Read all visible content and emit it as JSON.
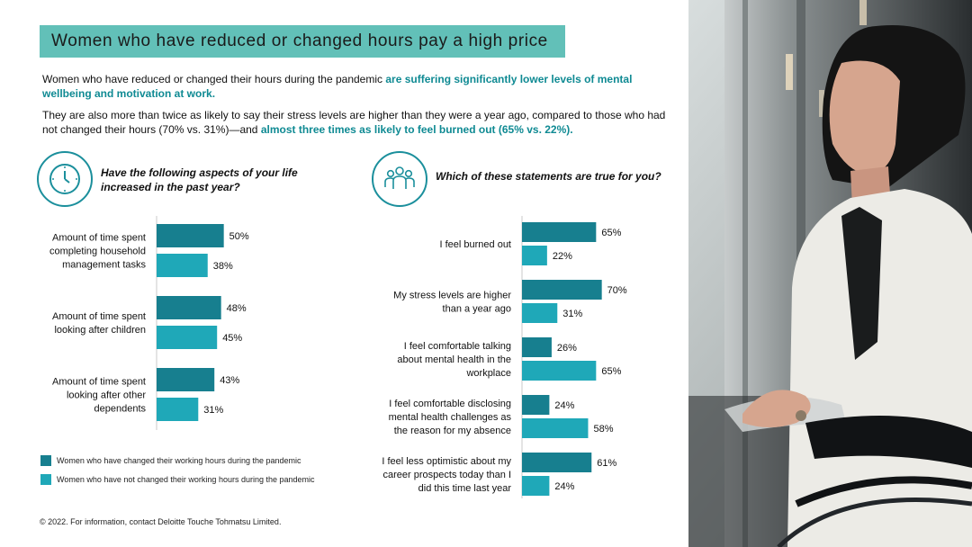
{
  "title": "Women who have reduced or changed hours pay a high price",
  "intro": {
    "p1_plain": "Women who have reduced or changed their hours during the pandemic ",
    "p1_highlight": "are suffering significantly lower levels of mental wellbeing and motivation at work.",
    "p2_plain": "They are also more than twice as likely to say their stress levels are higher than they were a year ago, compared to those who had not changed their hours (70% vs. 31%)—and ",
    "p2_highlight": "almost three times as likely to feel burned out (65% vs. 22%)."
  },
  "colors": {
    "changed": "#177f8f",
    "not_changed": "#1fa8b8",
    "accent": "#0f8a93",
    "title_bg": "#62c0b8"
  },
  "icons": {
    "left": "clock-icon",
    "right": "people-group-icon"
  },
  "chart_data": [
    {
      "type": "bar",
      "orientation": "horizontal",
      "title": "Have the following aspects of your life increased in the past year?",
      "categories": [
        [
          "Amount of time spent",
          "completing household",
          "management tasks"
        ],
        [
          "Amount of time spent",
          "looking after children"
        ],
        [
          "Amount of time spent",
          "looking after other",
          "dependents"
        ]
      ],
      "series": [
        {
          "name": "Women who have changed their working hours during the pandemic",
          "values": [
            50,
            48,
            43
          ]
        },
        {
          "name": "Women who have not changed their working hours during the pandemic",
          "values": [
            38,
            45,
            31
          ]
        }
      ],
      "value_suffix": "%",
      "xlim": [
        0,
        100
      ]
    },
    {
      "type": "bar",
      "orientation": "horizontal",
      "title": "Which of these statements are true for you?",
      "categories": [
        [
          "I feel burned out"
        ],
        [
          "My stress levels are higher",
          "than a year ago"
        ],
        [
          "I feel comfortable talking",
          "about mental health in the",
          "workplace"
        ],
        [
          "I feel comfortable disclosing",
          "mental health challenges as",
          "the reason for my absence"
        ],
        [
          "I feel less optimistic about my",
          "career prospects today than I",
          "did this time last year"
        ]
      ],
      "series": [
        {
          "name": "Women who have changed their working hours during the pandemic",
          "values": [
            65,
            70,
            26,
            24,
            61
          ]
        },
        {
          "name": "Women who have not changed their working hours during the pandemic",
          "values": [
            22,
            31,
            65,
            58,
            24
          ]
        }
      ],
      "value_suffix": "%",
      "xlim": [
        0,
        100
      ]
    }
  ],
  "footer": "© 2022. For information, contact Deloitte Touche Tohmatsu Limited."
}
